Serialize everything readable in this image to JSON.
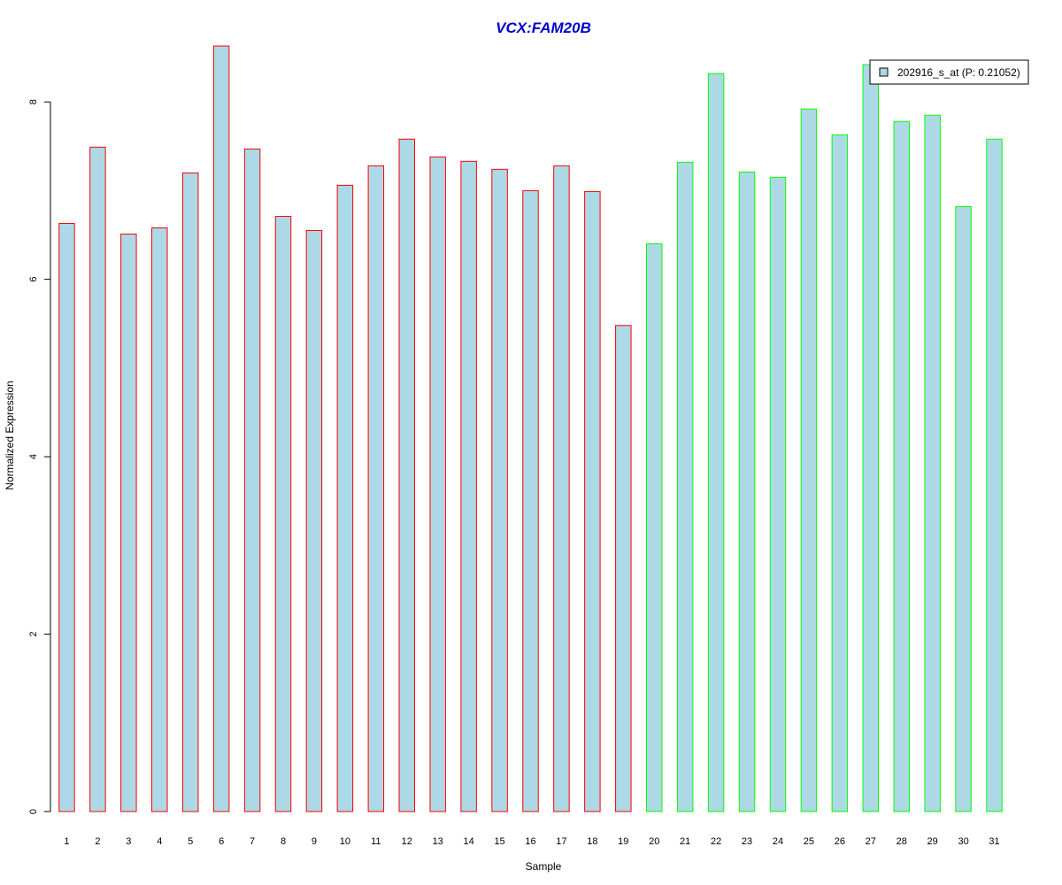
{
  "chart_data": {
    "type": "bar",
    "title": "VCX:FAM20B",
    "xlabel": "Sample",
    "ylabel": "Normalized Expression",
    "categories": [
      "1",
      "2",
      "3",
      "4",
      "5",
      "6",
      "7",
      "8",
      "9",
      "10",
      "11",
      "12",
      "13",
      "14",
      "15",
      "16",
      "17",
      "18",
      "19",
      "20",
      "21",
      "22",
      "23",
      "24",
      "25",
      "26",
      "27",
      "28",
      "29",
      "30",
      "31"
    ],
    "series": [
      {
        "name": "202916_s_at (P: 0.21052)",
        "values": [
          6.63,
          7.49,
          6.51,
          6.58,
          7.2,
          8.63,
          7.47,
          6.71,
          6.55,
          7.06,
          7.28,
          7.58,
          7.38,
          7.33,
          7.24,
          7.0,
          7.28,
          6.99,
          5.48,
          6.4,
          7.32,
          8.32,
          7.21,
          7.15,
          7.92,
          7.63,
          8.42,
          7.78,
          7.85,
          6.82,
          7.58
        ]
      }
    ],
    "groups": [
      {
        "from": 1,
        "to": 19,
        "border_color": "#ff0000"
      },
      {
        "from": 20,
        "to": 31,
        "border_color": "#00ff00"
      }
    ],
    "fill_color": "#add8e6",
    "title_color": "#0000cd",
    "ylim": [
      0,
      8.7
    ],
    "yticks": [
      0,
      2,
      4,
      6,
      8
    ],
    "grid": false,
    "legend": {
      "position": "top-right",
      "label": "202916_s_at (P: 0.21052)"
    }
  }
}
